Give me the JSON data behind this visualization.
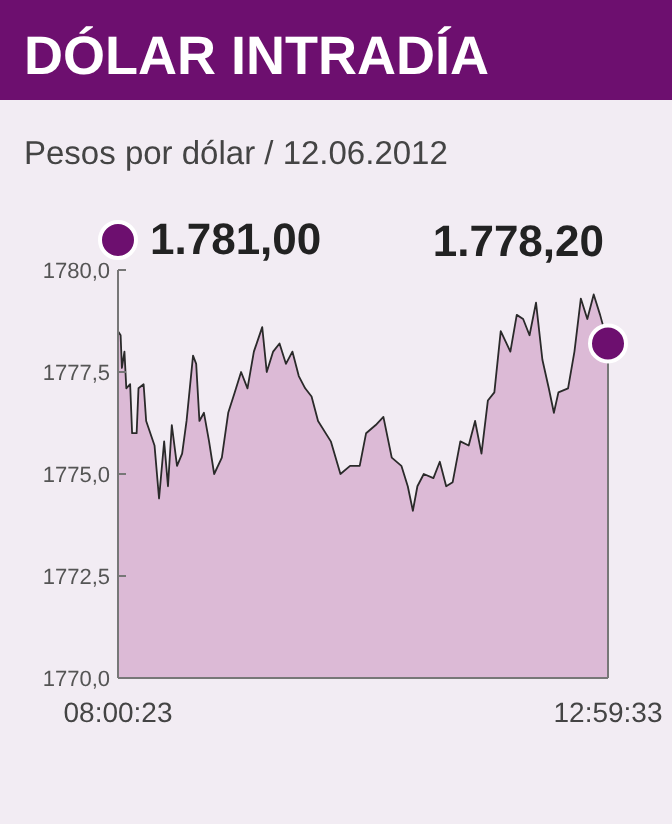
{
  "chart_data": {
    "type": "area",
    "title": "DÓLAR INTRADÍA",
    "subtitle": "Pesos por dólar / 12.06.2012",
    "xlim": [
      8.0064,
      12.9925
    ],
    "xticks": [
      {
        "value": 8.0064,
        "label": "08:00:23"
      },
      {
        "value": 12.9925,
        "label": "12:59:33"
      }
    ],
    "ylim": [
      1770,
      1780
    ],
    "yticks": [
      {
        "value": 1770,
        "label": "1770,0"
      },
      {
        "value": 1772.5,
        "label": "1772,5"
      },
      {
        "value": 1775,
        "label": "1775,0"
      },
      {
        "value": 1777.5,
        "label": "1777,5"
      },
      {
        "value": 1780,
        "label": "1780,0"
      }
    ],
    "grid": false,
    "marker": "none",
    "line_style": "solid",
    "annotations": [
      "1.781,00",
      "1.778,20"
    ],
    "series": [
      {
        "color": "#dcbad6",
        "x": [
          8.0064,
          8.033,
          8.046,
          8.072,
          8.091,
          8.13,
          8.15,
          8.196,
          8.215,
          8.267,
          8.293,
          8.378,
          8.424,
          8.476,
          8.515,
          8.554,
          8.607,
          8.659,
          8.704,
          8.77,
          8.802,
          8.835,
          8.881,
          8.933,
          8.985,
          9.063,
          9.128,
          9.194,
          9.259,
          9.324,
          9.389,
          9.474,
          9.52,
          9.585,
          9.65,
          9.715,
          9.781,
          9.846,
          9.911,
          9.976,
          10.042,
          10.172,
          10.27,
          10.368,
          10.466,
          10.531,
          10.629,
          10.707,
          10.792,
          10.89,
          10.955,
          11.007,
          11.053,
          11.118,
          11.216,
          11.281,
          11.346,
          11.412,
          11.49,
          11.575,
          11.64,
          11.705,
          11.77,
          11.836,
          11.901,
          11.999,
          12.064,
          12.129,
          12.194,
          12.26,
          12.325,
          12.39,
          12.442,
          12.488,
          12.586,
          12.651,
          12.716,
          12.782,
          12.847,
          12.912,
          12.9925
        ],
        "values": [
          1778.5,
          1778.4,
          1777.6,
          1778.0,
          1777.1,
          1777.2,
          1776.0,
          1776.0,
          1777.1,
          1777.2,
          1776.3,
          1775.7,
          1774.4,
          1775.8,
          1774.7,
          1776.2,
          1775.2,
          1775.5,
          1776.3,
          1777.9,
          1777.7,
          1776.3,
          1776.5,
          1775.8,
          1775.0,
          1775.4,
          1776.5,
          1777.0,
          1777.5,
          1777.1,
          1778.0,
          1778.6,
          1777.5,
          1778.0,
          1778.2,
          1777.7,
          1778.0,
          1777.4,
          1777.1,
          1776.9,
          1776.3,
          1775.8,
          1775.0,
          1775.2,
          1775.2,
          1776.0,
          1776.2,
          1776.4,
          1775.4,
          1775.2,
          1774.7,
          1774.1,
          1774.7,
          1775.0,
          1774.9,
          1775.3,
          1774.7,
          1774.8,
          1775.8,
          1775.7,
          1776.3,
          1775.5,
          1776.8,
          1777.0,
          1778.5,
          1778.0,
          1778.9,
          1778.8,
          1778.4,
          1779.2,
          1777.8,
          1777.1,
          1776.5,
          1777.0,
          1777.1,
          1778.0,
          1779.3,
          1778.8,
          1779.4,
          1778.9,
          1778.2
        ]
      }
    ]
  }
}
